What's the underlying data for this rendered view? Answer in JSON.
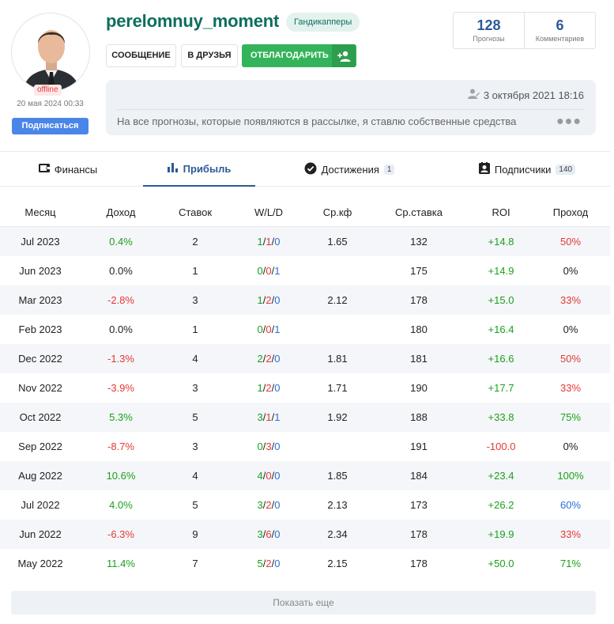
{
  "profile": {
    "username": "perelomnuy_moment",
    "group": "Гандикапперы",
    "status": "offline",
    "last_seen": "20 мая 2024 00:33",
    "subscribe_label": "Подписаться"
  },
  "actions": {
    "message_label": "СООБЩЕНИЕ",
    "friends_label": "В ДРУЗЬЯ",
    "thanks_label": "ОТБЛАГОДАРИТЬ"
  },
  "stats": [
    {
      "value": "128",
      "label": "Прогнозы"
    },
    {
      "value": "6",
      "label": "Комментариев"
    }
  ],
  "info": {
    "date": "3 октября 2021 18:16",
    "text": "На все прогнозы, которые появляются в рассылке, я ставлю собственные средства"
  },
  "tabs": [
    {
      "label": "Финансы",
      "count": "",
      "icon": "wallet-icon"
    },
    {
      "label": "Прибыль",
      "count": "",
      "icon": "bar-chart-icon"
    },
    {
      "label": "Достижения",
      "count": "1",
      "icon": "badge-check-icon"
    },
    {
      "label": "Подписчики",
      "count": "140",
      "icon": "person-card-icon"
    }
  ],
  "table": {
    "headers": [
      "Месяц",
      "Доход",
      "Ставок",
      "W/L/D",
      "Ср.кф",
      "Ср.ставка",
      "ROI",
      "Проход"
    ],
    "rows": [
      {
        "month": "Jul 2023",
        "income": "0.4%",
        "bets": "2",
        "w": "1",
        "l": "1",
        "d": "0",
        "kf": "1.65",
        "stake": "132",
        "roi": "+14.8",
        "pass": "50%"
      },
      {
        "month": "Jun 2023",
        "income": "0.0%",
        "bets": "1",
        "w": "0",
        "l": "0",
        "d": "1",
        "kf": "",
        "stake": "175",
        "roi": "+14.9",
        "pass": "0%"
      },
      {
        "month": "Mar 2023",
        "income": "-2.8%",
        "bets": "3",
        "w": "1",
        "l": "2",
        "d": "0",
        "kf": "2.12",
        "stake": "178",
        "roi": "+15.0",
        "pass": "33%"
      },
      {
        "month": "Feb 2023",
        "income": "0.0%",
        "bets": "1",
        "w": "0",
        "l": "0",
        "d": "1",
        "kf": "",
        "stake": "180",
        "roi": "+16.4",
        "pass": "0%"
      },
      {
        "month": "Dec 2022",
        "income": "-1.3%",
        "bets": "4",
        "w": "2",
        "l": "2",
        "d": "0",
        "kf": "1.81",
        "stake": "181",
        "roi": "+16.6",
        "pass": "50%"
      },
      {
        "month": "Nov 2022",
        "income": "-3.9%",
        "bets": "3",
        "w": "1",
        "l": "2",
        "d": "0",
        "kf": "1.71",
        "stake": "190",
        "roi": "+17.7",
        "pass": "33%"
      },
      {
        "month": "Oct 2022",
        "income": "5.3%",
        "bets": "5",
        "w": "3",
        "l": "1",
        "d": "1",
        "kf": "1.92",
        "stake": "188",
        "roi": "+33.8",
        "pass": "75%"
      },
      {
        "month": "Sep 2022",
        "income": "-8.7%",
        "bets": "3",
        "w": "0",
        "l": "3",
        "d": "0",
        "kf": "",
        "stake": "191",
        "roi": "-100.0",
        "pass": "0%"
      },
      {
        "month": "Aug 2022",
        "income": "10.6%",
        "bets": "4",
        "w": "4",
        "l": "0",
        "d": "0",
        "kf": "1.85",
        "stake": "184",
        "roi": "+23.4",
        "pass": "100%"
      },
      {
        "month": "Jul 2022",
        "income": "4.0%",
        "bets": "5",
        "w": "3",
        "l": "2",
        "d": "0",
        "kf": "2.13",
        "stake": "173",
        "roi": "+26.2",
        "pass": "60%"
      },
      {
        "month": "Jun 2022",
        "income": "-6.3%",
        "bets": "9",
        "w": "3",
        "l": "6",
        "d": "0",
        "kf": "2.34",
        "stake": "178",
        "roi": "+19.9",
        "pass": "33%"
      },
      {
        "month": "May 2022",
        "income": "11.4%",
        "bets": "7",
        "w": "5",
        "l": "2",
        "d": "0",
        "kf": "2.15",
        "stake": "178",
        "roi": "+50.0",
        "pass": "71%"
      }
    ]
  },
  "show_more_label": "Показать еще",
  "colors": {
    "positive": "#1aa01a",
    "negative": "#e53935",
    "draw": "#2b6fd6",
    "accent": "#2c5a97",
    "username": "#0d6e5e",
    "thanks_button": "#34b45a"
  }
}
